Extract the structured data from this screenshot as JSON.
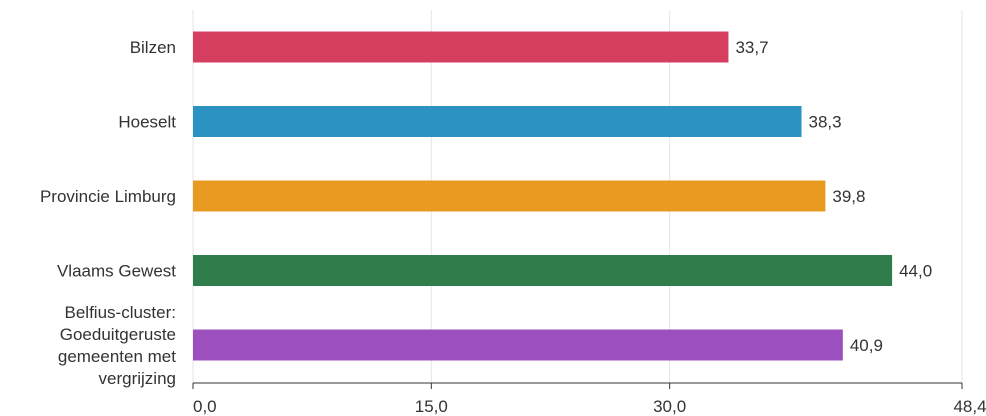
{
  "chart_data": {
    "type": "bar",
    "orientation": "horizontal",
    "categories": [
      "Bilzen",
      "Hoeselt",
      "Provincie Limburg",
      "Vlaams Gewest",
      "Belfius-cluster: Goeduitgeruste gemeenten met vergrijzing"
    ],
    "category_lines": [
      [
        "Bilzen"
      ],
      [
        "Hoeselt"
      ],
      [
        "Provincie Limburg"
      ],
      [
        "Vlaams Gewest"
      ],
      [
        "Belfius-cluster:",
        "Goeduitgeruste",
        "gemeenten met",
        "vergrijzing"
      ]
    ],
    "values": [
      33.7,
      38.3,
      39.8,
      44.0,
      40.9
    ],
    "value_labels": [
      "33,7",
      "38,3",
      "39,8",
      "44,0",
      "40,9"
    ],
    "colors": [
      "#d63e5f",
      "#2b92c1",
      "#e89b20",
      "#2e7d4a",
      "#9b50be"
    ],
    "xlim": [
      0,
      48.4
    ],
    "ticks": [
      0,
      15,
      30,
      48.4
    ],
    "tick_labels": [
      "0,0",
      "15,0",
      "30,0",
      "48,4"
    ],
    "grid": true,
    "title": "",
    "xlabel": "",
    "ylabel": ""
  }
}
